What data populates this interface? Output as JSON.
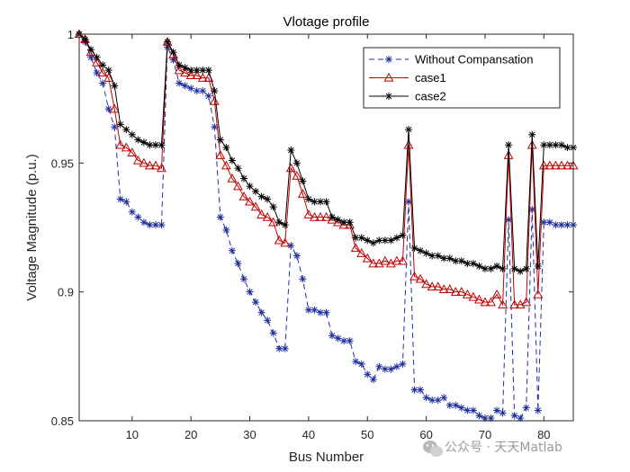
{
  "chart_data": {
    "type": "line",
    "title": "Vlotage profile",
    "xlabel": "Bus Number",
    "ylabel": "Voltage Magnitude (p.u.)",
    "xlim": [
      1,
      85
    ],
    "ylim": [
      0.85,
      1.0
    ],
    "xticks": [
      10,
      20,
      30,
      40,
      50,
      60,
      70,
      80
    ],
    "yticks": [
      0.85,
      0.9,
      0.95,
      1.0
    ],
    "ytick_labels": [
      "0.85",
      "0.9",
      "0.95",
      "1"
    ],
    "grid": false,
    "legend_position": "top-right",
    "x": [
      1,
      2,
      3,
      4,
      5,
      6,
      7,
      8,
      9,
      10,
      11,
      12,
      13,
      14,
      15,
      16,
      17,
      18,
      19,
      20,
      21,
      22,
      23,
      24,
      25,
      26,
      27,
      28,
      29,
      30,
      31,
      32,
      33,
      34,
      35,
      36,
      37,
      38,
      39,
      40,
      41,
      42,
      43,
      44,
      45,
      46,
      47,
      48,
      49,
      50,
      51,
      52,
      53,
      54,
      55,
      56,
      57,
      58,
      59,
      60,
      61,
      62,
      63,
      64,
      65,
      66,
      67,
      68,
      69,
      70,
      71,
      72,
      73,
      74,
      75,
      76,
      77,
      78,
      79,
      80,
      81,
      82,
      83,
      84,
      85
    ],
    "series": [
      {
        "name": "Without Compansation",
        "color": "#1f2f9e",
        "marker": "asterisk",
        "line_style": "dashed",
        "values": [
          1.0,
          0.997,
          0.991,
          0.985,
          0.981,
          0.971,
          0.964,
          0.936,
          0.935,
          0.931,
          0.929,
          0.927,
          0.926,
          0.926,
          0.926,
          0.995,
          0.99,
          0.981,
          0.98,
          0.979,
          0.978,
          0.978,
          0.976,
          0.964,
          0.929,
          0.924,
          0.916,
          0.911,
          0.905,
          0.9,
          0.896,
          0.892,
          0.889,
          0.884,
          0.878,
          0.878,
          0.918,
          0.914,
          0.905,
          0.893,
          0.893,
          0.892,
          0.892,
          0.883,
          0.882,
          0.881,
          0.881,
          0.873,
          0.872,
          0.868,
          0.866,
          0.871,
          0.87,
          0.87,
          0.871,
          0.872,
          0.935,
          0.862,
          0.862,
          0.859,
          0.858,
          0.858,
          0.859,
          0.856,
          0.856,
          0.855,
          0.854,
          0.854,
          0.852,
          0.851,
          0.851,
          0.854,
          0.853,
          0.928,
          0.852,
          0.851,
          0.855,
          0.932,
          0.854,
          0.927,
          0.927,
          0.926,
          0.926,
          0.926,
          0.926
        ]
      },
      {
        "name": "case1",
        "color": "#c00000",
        "marker": "triangle",
        "line_style": "solid",
        "values": [
          1.0,
          0.998,
          0.993,
          0.989,
          0.985,
          0.983,
          0.971,
          0.957,
          0.956,
          0.954,
          0.951,
          0.95,
          0.949,
          0.949,
          0.948,
          0.997,
          0.992,
          0.986,
          0.985,
          0.984,
          0.984,
          0.983,
          0.983,
          0.974,
          0.953,
          0.949,
          0.944,
          0.941,
          0.937,
          0.935,
          0.933,
          0.93,
          0.929,
          0.927,
          0.92,
          0.919,
          0.948,
          0.945,
          0.938,
          0.93,
          0.929,
          0.929,
          0.929,
          0.928,
          0.927,
          0.926,
          0.926,
          0.917,
          0.915,
          0.913,
          0.911,
          0.911,
          0.912,
          0.911,
          0.912,
          0.912,
          0.957,
          0.906,
          0.905,
          0.903,
          0.902,
          0.902,
          0.901,
          0.901,
          0.9,
          0.9,
          0.899,
          0.898,
          0.897,
          0.896,
          0.896,
          0.899,
          0.895,
          0.953,
          0.895,
          0.895,
          0.896,
          0.957,
          0.899,
          0.949,
          0.949,
          0.949,
          0.949,
          0.949,
          0.949
        ]
      },
      {
        "name": "case2",
        "color": "#000000",
        "marker": "asterisk",
        "line_style": "solid",
        "values": [
          1.0,
          0.998,
          0.994,
          0.991,
          0.988,
          0.986,
          0.98,
          0.965,
          0.963,
          0.961,
          0.959,
          0.958,
          0.957,
          0.957,
          0.957,
          0.997,
          0.993,
          0.988,
          0.987,
          0.986,
          0.986,
          0.986,
          0.986,
          0.978,
          0.959,
          0.956,
          0.951,
          0.948,
          0.944,
          0.941,
          0.939,
          0.937,
          0.936,
          0.933,
          0.927,
          0.926,
          0.955,
          0.95,
          0.943,
          0.936,
          0.935,
          0.935,
          0.935,
          0.929,
          0.928,
          0.927,
          0.927,
          0.921,
          0.921,
          0.92,
          0.919,
          0.92,
          0.92,
          0.92,
          0.921,
          0.922,
          0.963,
          0.917,
          0.916,
          0.915,
          0.914,
          0.914,
          0.913,
          0.913,
          0.912,
          0.912,
          0.911,
          0.911,
          0.91,
          0.909,
          0.909,
          0.91,
          0.909,
          0.957,
          0.909,
          0.908,
          0.909,
          0.961,
          0.91,
          0.957,
          0.957,
          0.957,
          0.957,
          0.956,
          0.956
        ]
      }
    ]
  },
  "watermark": {
    "text": "公众号 · 天天Matlab"
  }
}
